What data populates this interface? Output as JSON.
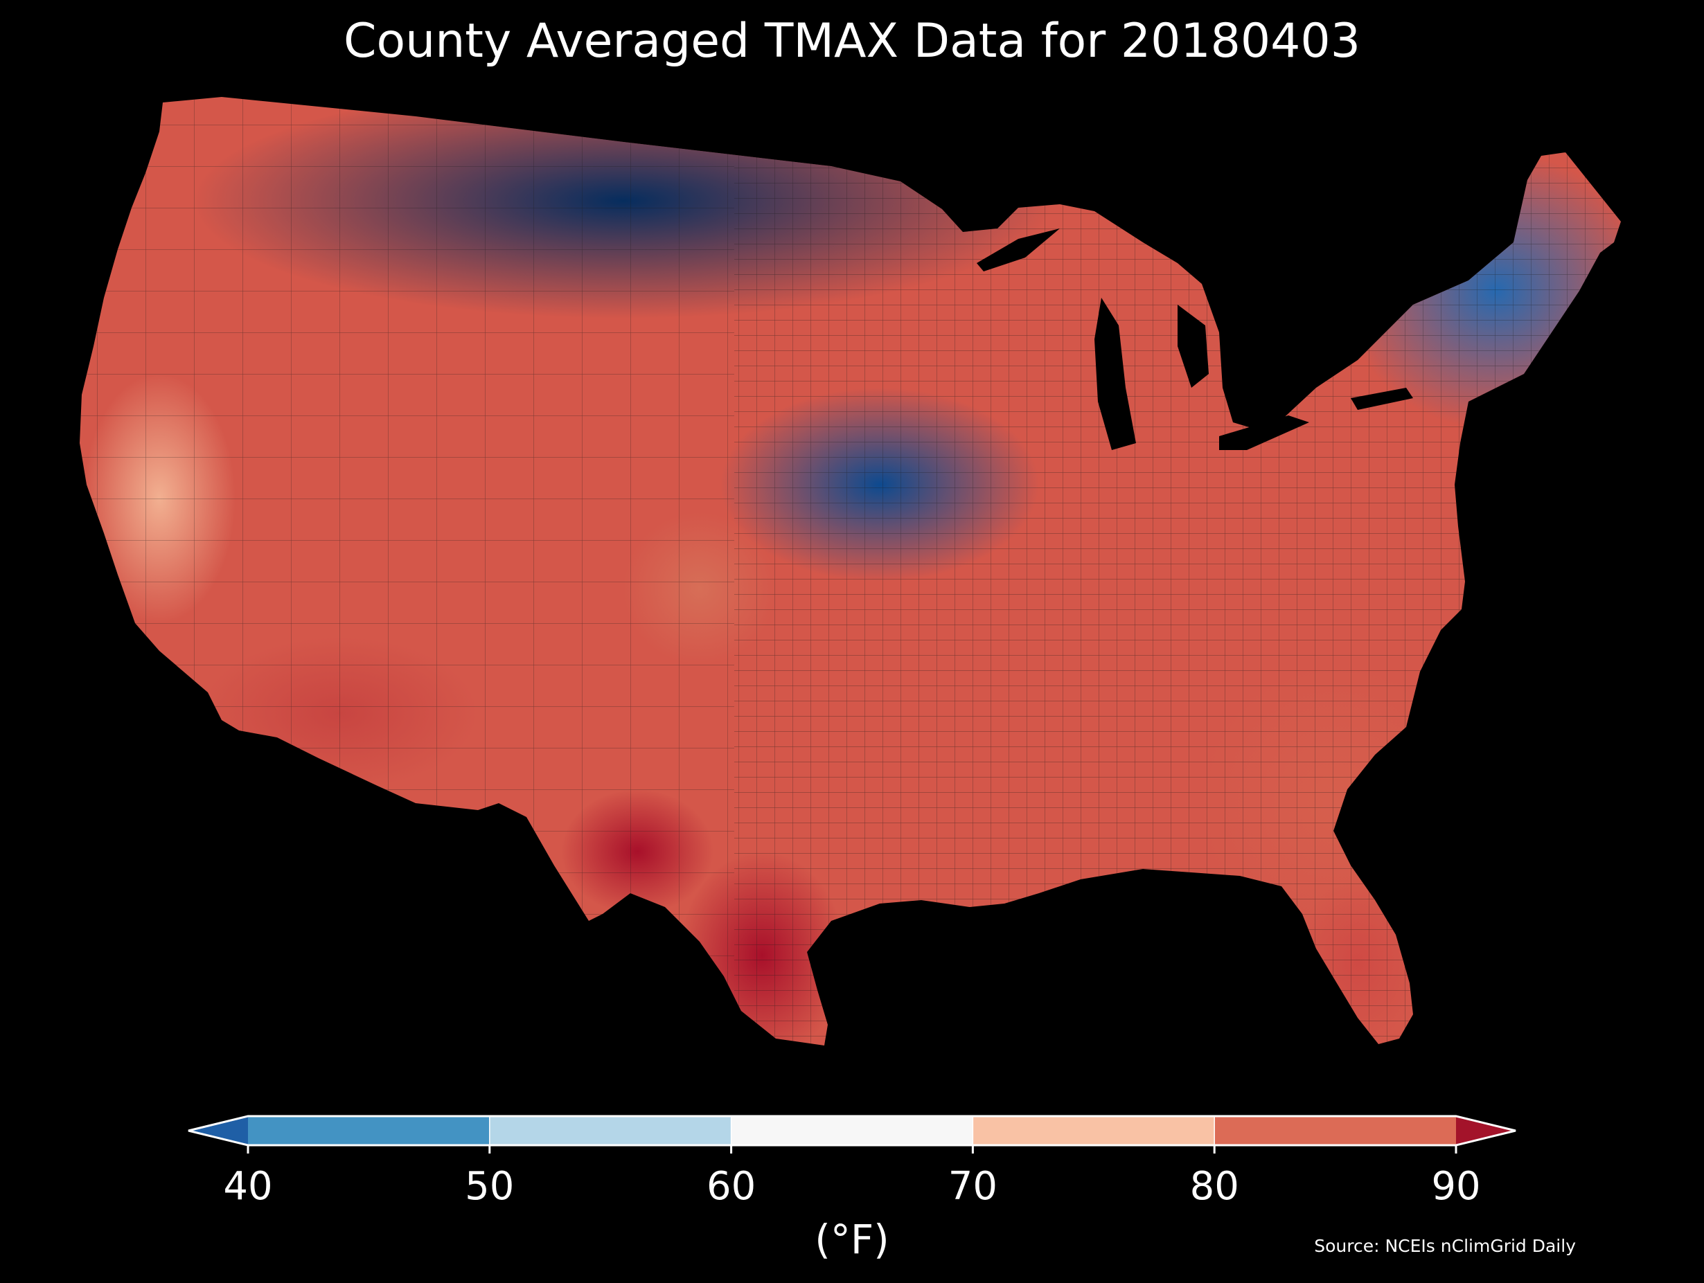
{
  "title": "County Averaged TMAX Data for 20180403",
  "source": "Source: NCEIs nClimGrid Daily",
  "colorbar": {
    "unit_label": "(°F)",
    "ticks": [
      "40",
      "50",
      "60",
      "70",
      "80",
      "90"
    ],
    "bins": [
      {
        "from": 40,
        "to": 50,
        "color": "#4393c3"
      },
      {
        "from": 50,
        "to": 60,
        "color": "#b4d6e8"
      },
      {
        "from": 60,
        "to": 70,
        "color": "#f7f7f7"
      },
      {
        "from": 70,
        "to": 80,
        "color": "#f9c2a5"
      },
      {
        "from": 80,
        "to": 90,
        "color": "#dc6b56"
      }
    ],
    "under_color": "#1f5fa6",
    "over_color": "#a3132a",
    "outline_color": "#ffffff"
  },
  "map": {
    "background_color": "#000000",
    "county_edge_color": "#1a1a1a",
    "regions": [
      {
        "name": "northern-plains-cold-core",
        "color": "#0a3a72"
      },
      {
        "name": "northern-rockies",
        "color": "#2a6fb2"
      },
      {
        "name": "pacific-northwest",
        "color": "#5ea6d4"
      },
      {
        "name": "northeast-new-england",
        "color": "#2f7dc0"
      },
      {
        "name": "great-lakes-midwest",
        "color": "#4a92cc"
      },
      {
        "name": "central-plains-blue-band",
        "color": "#1f5fa6"
      },
      {
        "name": "mid-latitude-transition",
        "color": "#f0f0f0"
      },
      {
        "name": "california-interior",
        "color": "#f6c6aa"
      },
      {
        "name": "desert-southwest",
        "color": "#d9664f"
      },
      {
        "name": "colorado-front-range-warm",
        "color": "#e48a6c"
      },
      {
        "name": "texas-south",
        "color": "#d3544a"
      },
      {
        "name": "south-texas-hot",
        "color": "#b61f33"
      },
      {
        "name": "gulf-coast-southeast",
        "color": "#e07a60"
      },
      {
        "name": "florida",
        "color": "#d8594a"
      }
    ]
  }
}
